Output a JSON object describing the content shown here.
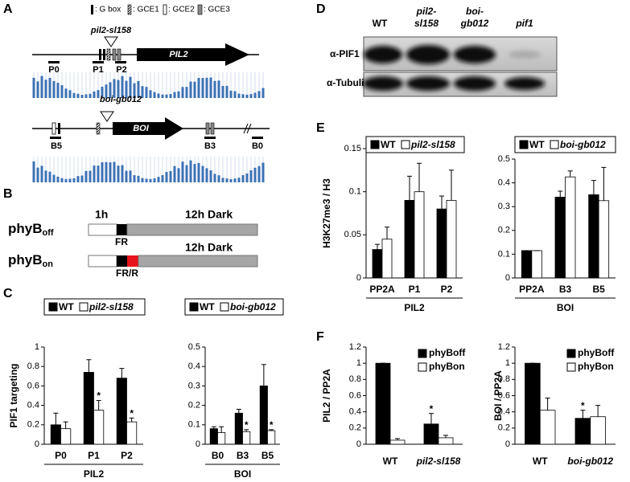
{
  "panel_labels": [
    "A",
    "B",
    "C",
    "D",
    "E",
    "F"
  ],
  "panel_a": {
    "legend": [
      ": G box",
      ": GCE1",
      ": GCE2",
      ": GCE3"
    ],
    "genes": [
      {
        "mutant": "pil2-sl158",
        "name": "PIL2",
        "regions": [
          "P0",
          "P1",
          "P2"
        ]
      },
      {
        "mutant": "boi-gb012",
        "name": "BOI",
        "regions": [
          "B5",
          "B3",
          "B0"
        ]
      }
    ]
  },
  "panel_b": {
    "light": "1h",
    "rows": [
      {
        "name": "phyB",
        "sub": "off",
        "dark": "12h Dark",
        "treatment": "FR"
      },
      {
        "name": "phyB",
        "sub": "on",
        "dark": "12h Dark",
        "treatment": "FR/R"
      }
    ]
  },
  "panel_d": {
    "lanes": [
      [
        "WT"
      ],
      [
        "pil2-",
        "sl158"
      ],
      [
        "boi-",
        "gb012"
      ],
      [
        "pif1"
      ]
    ],
    "blots": [
      "α-PIF1",
      "α-Tubulin"
    ]
  },
  "chart_data": [
    {
      "type": "bar",
      "ylabel": "PIF1 targeting",
      "xlabel": "PIL2",
      "categories": [
        "P0",
        "P1",
        "P2"
      ],
      "series": [
        {
          "name": "WT",
          "color": "#000000",
          "values": [
            0.2,
            0.74,
            0.68
          ],
          "errors": [
            0.12,
            0.13,
            0.1
          ]
        },
        {
          "name": "pil2-sl158",
          "color": "#ffffff",
          "values": [
            0.16,
            0.35,
            0.23
          ],
          "errors": [
            0.07,
            0.1,
            0.04
          ],
          "labels": [
            null,
            "*",
            "*"
          ]
        }
      ],
      "ylim": [
        0,
        1
      ],
      "yticks": [
        0,
        0.2,
        0.4,
        0.6,
        0.8,
        1
      ],
      "legend": "top"
    },
    {
      "type": "bar",
      "xlabel": "BOI",
      "categories": [
        "B0",
        "B3",
        "B5"
      ],
      "series": [
        {
          "name": "WT",
          "color": "#000000",
          "values": [
            0.08,
            0.16,
            0.3
          ],
          "errors": [
            0.01,
            0.02,
            0.11
          ]
        },
        {
          "name": "boi-gb012",
          "color": "#ffffff",
          "values": [
            0.06,
            0.065,
            0.07
          ],
          "errors": [
            0.03,
            0.01,
            0.005
          ],
          "labels": [
            null,
            "*",
            "*"
          ]
        }
      ],
      "ylim": [
        0,
        0.5
      ],
      "yticks": [
        0,
        0.1,
        0.2,
        0.3,
        0.4,
        0.5
      ],
      "legend": "top"
    },
    {
      "type": "bar",
      "ylabel": "H3K27me3 / H3",
      "xlabel": "PIL2",
      "categories": [
        "PP2A",
        "P1",
        "P2"
      ],
      "series": [
        {
          "name": "WT",
          "color": "#000000",
          "values": [
            0.033,
            0.09,
            0.08
          ],
          "errors": [
            0.006,
            0.028,
            0.015
          ]
        },
        {
          "name": "pil2-sl158",
          "color": "#ffffff",
          "values": [
            0.045,
            0.1,
            0.09
          ],
          "errors": [
            0.014,
            0.033,
            0.035
          ]
        }
      ],
      "ylim": [
        0,
        0.15
      ],
      "yticks": [
        0,
        0.05,
        0.1,
        0.15
      ],
      "legend": "top"
    },
    {
      "type": "bar",
      "xlabel": "BOI",
      "categories": [
        "PP2A",
        "B3",
        "B5"
      ],
      "series": [
        {
          "name": "WT",
          "color": "#000000",
          "values": [
            0.115,
            0.34,
            0.35
          ],
          "errors": [
            0,
            0.025,
            0.06
          ]
        },
        {
          "name": "boi-gb012",
          "color": "#ffffff",
          "values": [
            0.115,
            0.425,
            0.325
          ],
          "errors": [
            0,
            0.025,
            0.14
          ]
        }
      ],
      "ylim": [
        0,
        0.5
      ],
      "yticks": [
        0,
        0.1,
        0.2,
        0.3,
        0.4,
        0.5
      ],
      "legend": "top"
    },
    {
      "type": "bar",
      "ylabel": "PIL2 / PP2A",
      "categories": [
        "WT",
        "pil2-sl158"
      ],
      "series": [
        {
          "name": "phyBoff",
          "color": "#000000",
          "values": [
            1,
            0.25
          ],
          "errors": [
            0,
            0.13
          ],
          "labels": [
            null,
            "*"
          ]
        },
        {
          "name": "phyBon",
          "color": "#ffffff",
          "values": [
            0.05,
            0.08
          ],
          "errors": [
            0.02,
            0.03
          ]
        }
      ],
      "ylim": [
        0,
        1.2
      ],
      "yticks": [
        0,
        0.2,
        0.4,
        0.6,
        0.8,
        1,
        1.2
      ],
      "legend": "upper right"
    },
    {
      "type": "bar",
      "ylabel": "BOI / PP2A",
      "categories": [
        "WT",
        "boi-gb012"
      ],
      "series": [
        {
          "name": "phyBoff",
          "color": "#000000",
          "values": [
            1,
            0.32
          ],
          "errors": [
            0,
            0.1
          ],
          "labels": [
            null,
            "*"
          ]
        },
        {
          "name": "phyBon",
          "color": "#ffffff",
          "values": [
            0.42,
            0.34
          ],
          "errors": [
            0.15,
            0.14
          ]
        }
      ],
      "ylim": [
        0,
        1.2
      ],
      "yticks": [
        0,
        0.2,
        0.4,
        0.6,
        0.8,
        1,
        1.2
      ],
      "legend": "upper right"
    }
  ]
}
